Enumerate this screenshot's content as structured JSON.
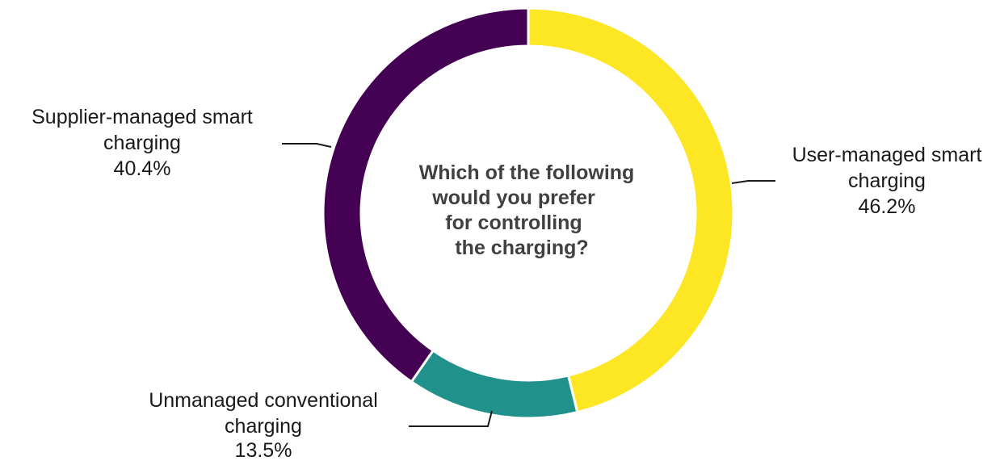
{
  "chart_data": {
    "type": "pie",
    "style": "donut",
    "center_title": [
      "Which of the following",
      "would you prefer",
      "for controlling",
      "the charging?"
    ],
    "slices": [
      {
        "label": [
          "User-managed smart",
          "charging"
        ],
        "value": 46.2,
        "value_label": "46.2%",
        "color": "#FDE725"
      },
      {
        "label": [
          "Unmanaged conventional",
          "charging"
        ],
        "value": 13.5,
        "value_label": "13.5%",
        "color": "#21918C"
      },
      {
        "label": [
          "Supplier-managed smart",
          "charging"
        ],
        "value": 40.4,
        "value_label": "40.4%",
        "color": "#440154"
      }
    ],
    "legend": "none"
  }
}
